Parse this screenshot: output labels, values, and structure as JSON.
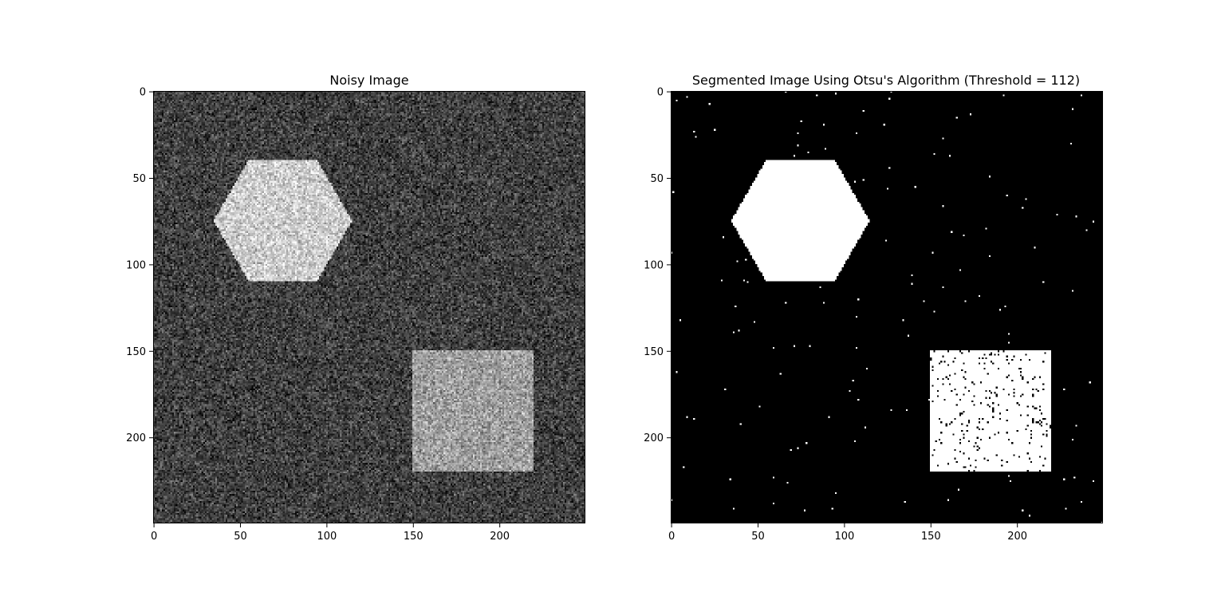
{
  "chart_data": [
    {
      "type": "heatmap",
      "title": "Noisy Image",
      "image_size": [
        250,
        250
      ],
      "xlim": [
        0,
        250
      ],
      "ylim": [
        250,
        0
      ],
      "x_ticks": [
        0,
        50,
        100,
        150,
        200
      ],
      "y_ticks": [
        0,
        50,
        100,
        150,
        200
      ],
      "colormap": "gray",
      "background_level": 0.25,
      "noise_amplitude": 0.22,
      "shapes": [
        {
          "kind": "hexagon",
          "center": [
            75,
            75
          ],
          "radius": 40,
          "level": 0.8
        },
        {
          "kind": "rectangle",
          "x": [
            150,
            220
          ],
          "y": [
            150,
            220
          ],
          "level": 0.62
        }
      ]
    },
    {
      "type": "heatmap",
      "title": "Segmented Image Using Otsu's Algorithm (Threshold = 112)",
      "image_size": [
        250,
        250
      ],
      "xlim": [
        0,
        250
      ],
      "ylim": [
        250,
        0
      ],
      "x_ticks": [
        0,
        50,
        100,
        150,
        200
      ],
      "y_ticks": [
        0,
        50,
        100,
        150,
        200
      ],
      "colormap": "binary",
      "threshold": 112,
      "foreground_color": "#ffffff",
      "background_color": "#000000",
      "shapes": [
        {
          "kind": "hexagon",
          "center": [
            75,
            75
          ],
          "radius": 40,
          "level": 1
        },
        {
          "kind": "rectangle",
          "x": [
            150,
            220
          ],
          "y": [
            150,
            220
          ],
          "level": 1
        }
      ],
      "background_speckle_rate": 0.003,
      "rectangle_dropout_rate": 0.05
    }
  ]
}
